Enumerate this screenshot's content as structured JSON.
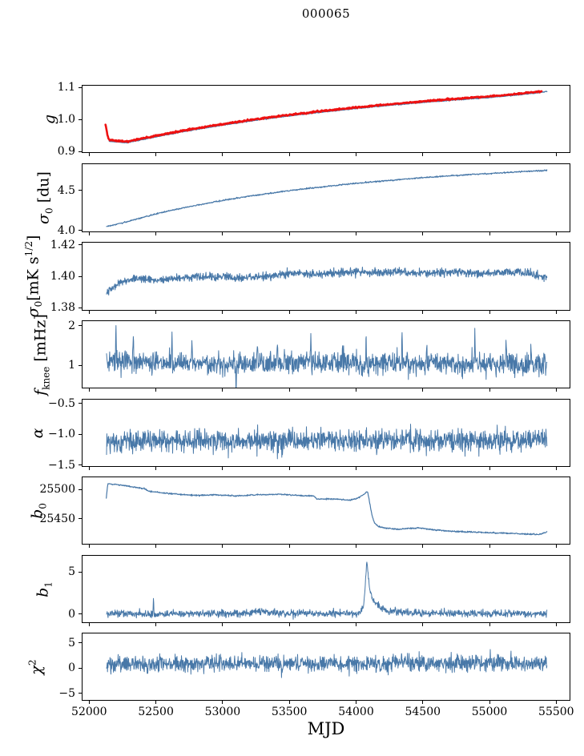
{
  "figure": {
    "title": "000065",
    "xlabel": "MJD",
    "colors": {
      "line": "#4878a8",
      "data_overlay": "#ee1111",
      "spine": "#000000",
      "text": "#000000",
      "background": "#ffffff"
    },
    "x": {
      "lim": [
        51950,
        55600
      ],
      "ticks": [
        {
          "v": 52000,
          "label": "52000"
        },
        {
          "v": 52500,
          "label": "52500"
        },
        {
          "v": 53000,
          "label": "53000"
        },
        {
          "v": 53500,
          "label": "53500"
        },
        {
          "v": 54000,
          "label": "54000"
        },
        {
          "v": 54500,
          "label": "54500"
        },
        {
          "v": 55000,
          "label": "55000"
        },
        {
          "v": 55500,
          "label": "55500"
        }
      ]
    }
  },
  "chart_data": [
    {
      "type": "line",
      "name": "g",
      "ylabel_parts": [
        {
          "k": "i",
          "s": "g"
        }
      ],
      "ylim": [
        0.898,
        1.106
      ],
      "yticks": [
        {
          "v": 0.9,
          "label": "0.9"
        },
        {
          "v": 1.0,
          "label": "1.0"
        },
        {
          "v": 1.1,
          "label": "1.1"
        }
      ],
      "series": [
        {
          "name": "gain-model-line",
          "color": "#4878a8",
          "width": 1.3,
          "n": 900,
          "noise": 0.0007,
          "seed": 11,
          "keypoints": [
            [
              52150,
              0.932
            ],
            [
              52280,
              0.9275
            ],
            [
              52500,
              0.946
            ],
            [
              52750,
              0.9655
            ],
            [
              53000,
              0.9825
            ],
            [
              53250,
              0.998
            ],
            [
              53500,
              1.0115
            ],
            [
              53750,
              1.0235
            ],
            [
              54000,
              1.0345
            ],
            [
              54250,
              1.0445
            ],
            [
              54500,
              1.0535
            ],
            [
              54750,
              1.0615
            ],
            [
              55000,
              1.069
            ],
            [
              55150,
              1.0745
            ],
            [
              55300,
              1.081
            ],
            [
              55430,
              1.0875
            ]
          ]
        },
        {
          "name": "gain-data-points",
          "color": "#ee1111",
          "width": 2.6,
          "n": 900,
          "noise": 0.0011,
          "seed": 12,
          "keypoints": [
            [
              52122,
              0.9855
            ],
            [
              52128,
              0.9705
            ],
            [
              52136,
              0.9545
            ],
            [
              52144,
              0.9425
            ],
            [
              52152,
              0.9365
            ],
            [
              52280,
              0.931
            ],
            [
              52500,
              0.9495
            ],
            [
              52750,
              0.969
            ],
            [
              53000,
              0.986
            ],
            [
              53250,
              1.0015
            ],
            [
              53500,
              1.015
            ],
            [
              53750,
              1.027
            ],
            [
              54000,
              1.038
            ],
            [
              54250,
              1.048
            ],
            [
              54500,
              1.057
            ],
            [
              54750,
              1.065
            ],
            [
              55000,
              1.0725
            ],
            [
              55150,
              1.078
            ],
            [
              55300,
              1.0845
            ],
            [
              55390,
              1.088
            ]
          ]
        }
      ]
    },
    {
      "type": "line",
      "name": "sigma0-du",
      "ylabel_parts": [
        {
          "k": "i",
          "s": "σ"
        },
        {
          "k": "sub",
          "s": "0"
        },
        {
          "k": "n",
          "s": " [du]"
        }
      ],
      "ylim": [
        3.985,
        4.83
      ],
      "yticks": [
        {
          "v": 4.0,
          "label": "4.0"
        },
        {
          "v": 4.5,
          "label": "4.5"
        }
      ],
      "series": [
        {
          "name": "sigma0-du-line",
          "color": "#4878a8",
          "width": 1.2,
          "n": 1100,
          "noise": 0.004,
          "seed": 21,
          "keypoints": [
            [
              52130,
              4.048
            ],
            [
              52200,
              4.072
            ],
            [
              52350,
              4.138
            ],
            [
              52500,
              4.205
            ],
            [
              52650,
              4.262
            ],
            [
              52800,
              4.312
            ],
            [
              53000,
              4.375
            ],
            [
              53200,
              4.428
            ],
            [
              53400,
              4.475
            ],
            [
              53600,
              4.518
            ],
            [
              53800,
              4.555
            ],
            [
              54000,
              4.59
            ],
            [
              54200,
              4.62
            ],
            [
              54400,
              4.648
            ],
            [
              54600,
              4.672
            ],
            [
              54800,
              4.694
            ],
            [
              55000,
              4.713
            ],
            [
              55150,
              4.727
            ],
            [
              55300,
              4.741
            ],
            [
              55430,
              4.752
            ]
          ]
        }
      ]
    },
    {
      "type": "line",
      "name": "sigma0-mK",
      "ylabel_parts": [
        {
          "k": "i",
          "s": "σ"
        },
        {
          "k": "sub",
          "s": "0"
        },
        {
          "k": "n",
          "s": "[mK s"
        },
        {
          "k": "sup",
          "s": "1/2"
        },
        {
          "k": "n",
          "s": "]"
        }
      ],
      "ylim": [
        1.3785,
        1.4215
      ],
      "yticks": [
        {
          "v": 1.38,
          "label": "1.38"
        },
        {
          "v": 1.4,
          "label": "1.40"
        },
        {
          "v": 1.42,
          "label": "1.42"
        }
      ],
      "series": [
        {
          "name": "sigma0-mK-line",
          "color": "#4878a8",
          "width": 1.1,
          "n": 1400,
          "noise": 0.00125,
          "seed": 31,
          "keypoints": [
            [
              52130,
              1.3885
            ],
            [
              52170,
              1.3925
            ],
            [
              52230,
              1.3965
            ],
            [
              52350,
              1.3985
            ],
            [
              52500,
              1.3975
            ],
            [
              52650,
              1.3985
            ],
            [
              52800,
              1.3995
            ],
            [
              52950,
              1.4
            ],
            [
              53100,
              1.399
            ],
            [
              53250,
              1.3998
            ],
            [
              53400,
              1.4008
            ],
            [
              53550,
              1.4022
            ],
            [
              53700,
              1.4015
            ],
            [
              53850,
              1.402
            ],
            [
              54000,
              1.403
            ],
            [
              54150,
              1.4022
            ],
            [
              54300,
              1.4028
            ],
            [
              54450,
              1.402
            ],
            [
              54600,
              1.4024
            ],
            [
              54750,
              1.4028
            ],
            [
              54900,
              1.4018
            ],
            [
              55050,
              1.4022
            ],
            [
              55200,
              1.403
            ],
            [
              55320,
              1.4012
            ],
            [
              55430,
              1.3995
            ]
          ]
        }
      ]
    },
    {
      "type": "line",
      "name": "f-knee",
      "ylabel_parts": [
        {
          "k": "i",
          "s": "f"
        },
        {
          "k": "sub",
          "s": "knee"
        },
        {
          "k": "n",
          "s": " [mHz]"
        }
      ],
      "ylim": [
        0.44,
        2.12
      ],
      "yticks": [
        {
          "v": 1,
          "label": "1"
        },
        {
          "v": 2,
          "label": "2"
        }
      ],
      "series": [
        {
          "name": "f-knee-line",
          "color": "#4878a8",
          "width": 1.0,
          "n": 1400,
          "noise": 0.135,
          "seed": 41,
          "keypoints": [
            [
              52130,
              1.13
            ],
            [
              52300,
              1.09
            ],
            [
              52600,
              1.06
            ],
            [
              53000,
              1.05
            ],
            [
              53500,
              1.06
            ],
            [
              54000,
              1.06
            ],
            [
              54500,
              1.05
            ],
            [
              55000,
              1.05
            ],
            [
              55430,
              1.03
            ]
          ],
          "spikes": [
            [
              52200,
              0.9,
              5
            ],
            [
              52330,
              0.65,
              5
            ],
            [
              52620,
              0.95,
              5
            ],
            [
              52770,
              0.6,
              5
            ],
            [
              53100,
              -0.58,
              5
            ],
            [
              53260,
              0.55,
              5
            ],
            [
              53410,
              0.75,
              5
            ],
            [
              53660,
              0.6,
              5
            ],
            [
              53900,
              0.55,
              5
            ],
            [
              54075,
              0.9,
              5
            ],
            [
              54345,
              0.95,
              5
            ],
            [
              54530,
              0.6,
              5
            ],
            [
              54890,
              0.7,
              5
            ],
            [
              55125,
              0.75,
              5
            ],
            [
              55310,
              0.55,
              5
            ]
          ]
        }
      ]
    },
    {
      "type": "line",
      "name": "alpha",
      "ylabel_parts": [
        {
          "k": "i",
          "s": "α"
        }
      ],
      "ylim": [
        -1.515,
        -0.44
      ],
      "yticks": [
        {
          "v": -0.5,
          "label": "−0.5"
        },
        {
          "v": -1.0,
          "label": "−1.0"
        },
        {
          "v": -1.5,
          "label": "−1.5"
        }
      ],
      "series": [
        {
          "name": "alpha-line",
          "color": "#4878a8",
          "width": 1.0,
          "n": 1400,
          "noise": 0.088,
          "seed": 51,
          "keypoints": [
            [
              52130,
              -1.112
            ],
            [
              53000,
              -1.105
            ],
            [
              54000,
              -1.108
            ],
            [
              55000,
              -1.1
            ],
            [
              55430,
              -1.103
            ]
          ]
        }
      ]
    },
    {
      "type": "line",
      "name": "b0",
      "ylabel_parts": [
        {
          "k": "i",
          "s": "b"
        },
        {
          "k": "sub",
          "s": "0"
        }
      ],
      "ylim": [
        25407,
        25521
      ],
      "yticks": [
        {
          "v": 25450,
          "label": "25450"
        },
        {
          "v": 25500,
          "label": "25500"
        }
      ],
      "series": [
        {
          "name": "b0-line",
          "color": "#4878a8",
          "width": 1.2,
          "n": 1200,
          "noise": 0.55,
          "seed": 61,
          "keypoints": [
            [
              52128,
              25485
            ],
            [
              52132,
              25494
            ],
            [
              52140,
              25510
            ],
            [
              52260,
              25507
            ],
            [
              52420,
              25501
            ],
            [
              52450,
              25497
            ],
            [
              52600,
              25493
            ],
            [
              52800,
              25490
            ],
            [
              52950,
              25491
            ],
            [
              53100,
              25489
            ],
            [
              53250,
              25491
            ],
            [
              53420,
              25492
            ],
            [
              53560,
              25490
            ],
            [
              53680,
              25489
            ],
            [
              53705,
              25484
            ],
            [
              53850,
              25483.5
            ],
            [
              53950,
              25482
            ],
            [
              54010,
              25485
            ],
            [
              54060,
              25492
            ],
            [
              54085,
              25497
            ],
            [
              54100,
              25480
            ],
            [
              54115,
              25460
            ],
            [
              54135,
              25444
            ],
            [
              54165,
              25437
            ],
            [
              54220,
              25434
            ],
            [
              54300,
              25432
            ],
            [
              54400,
              25433.5
            ],
            [
              54480,
              25434
            ],
            [
              54600,
              25430.5
            ],
            [
              54750,
              25428
            ],
            [
              54900,
              25427
            ],
            [
              55050,
              25425.5
            ],
            [
              55200,
              25424.5
            ],
            [
              55300,
              25423.5
            ],
            [
              55370,
              25423
            ],
            [
              55430,
              25427
            ]
          ]
        }
      ]
    },
    {
      "type": "line",
      "name": "b1",
      "ylabel_parts": [
        {
          "k": "i",
          "s": "b"
        },
        {
          "k": "sub",
          "s": "1"
        }
      ],
      "ylim": [
        -0.95,
        6.9
      ],
      "yticks": [
        {
          "v": 0,
          "label": "0"
        },
        {
          "v": 5,
          "label": "5"
        }
      ],
      "series": [
        {
          "name": "b1-line",
          "color": "#4878a8",
          "width": 1.0,
          "n": 1400,
          "noise": 0.21,
          "seed": 71,
          "keypoints": [
            [
              52130,
              0.05
            ],
            [
              53150,
              0.08
            ],
            [
              53300,
              0.35
            ],
            [
              53420,
              0.1
            ],
            [
              54030,
              0.12
            ],
            [
              54058,
              1.1
            ],
            [
              54080,
              6.15
            ],
            [
              54092,
              4.6
            ],
            [
              54105,
              2.7
            ],
            [
              54130,
              1.6
            ],
            [
              54170,
              0.9
            ],
            [
              54230,
              0.5
            ],
            [
              54330,
              0.25
            ],
            [
              54480,
              0.12
            ],
            [
              55430,
              0.04
            ]
          ],
          "spikes": [
            [
              52482,
              2.0,
              4
            ],
            [
              52900,
              0.7,
              4
            ],
            [
              53655,
              0.6,
              4
            ],
            [
              54660,
              0.5,
              4
            ],
            [
              55155,
              0.45,
              4
            ]
          ]
        }
      ]
    },
    {
      "type": "line",
      "name": "chi2",
      "ylabel_parts": [
        {
          "k": "i",
          "s": "χ"
        },
        {
          "k": "sup",
          "s": "2"
        }
      ],
      "ylim": [
        -6.3,
        6.9
      ],
      "yticks": [
        {
          "v": -5,
          "label": "−5"
        },
        {
          "v": 0,
          "label": "0"
        },
        {
          "v": 5,
          "label": "5"
        }
      ],
      "series": [
        {
          "name": "chi2-line",
          "color": "#4878a8",
          "width": 1.0,
          "n": 1400,
          "noise": 0.78,
          "seed": 81,
          "keypoints": [
            [
              52130,
              0.8
            ],
            [
              53000,
              0.85
            ],
            [
              53600,
              0.8
            ],
            [
              54000,
              0.9
            ],
            [
              54600,
              1.15
            ],
            [
              55000,
              1.1
            ],
            [
              55430,
              1.0
            ]
          ]
        }
      ]
    }
  ]
}
